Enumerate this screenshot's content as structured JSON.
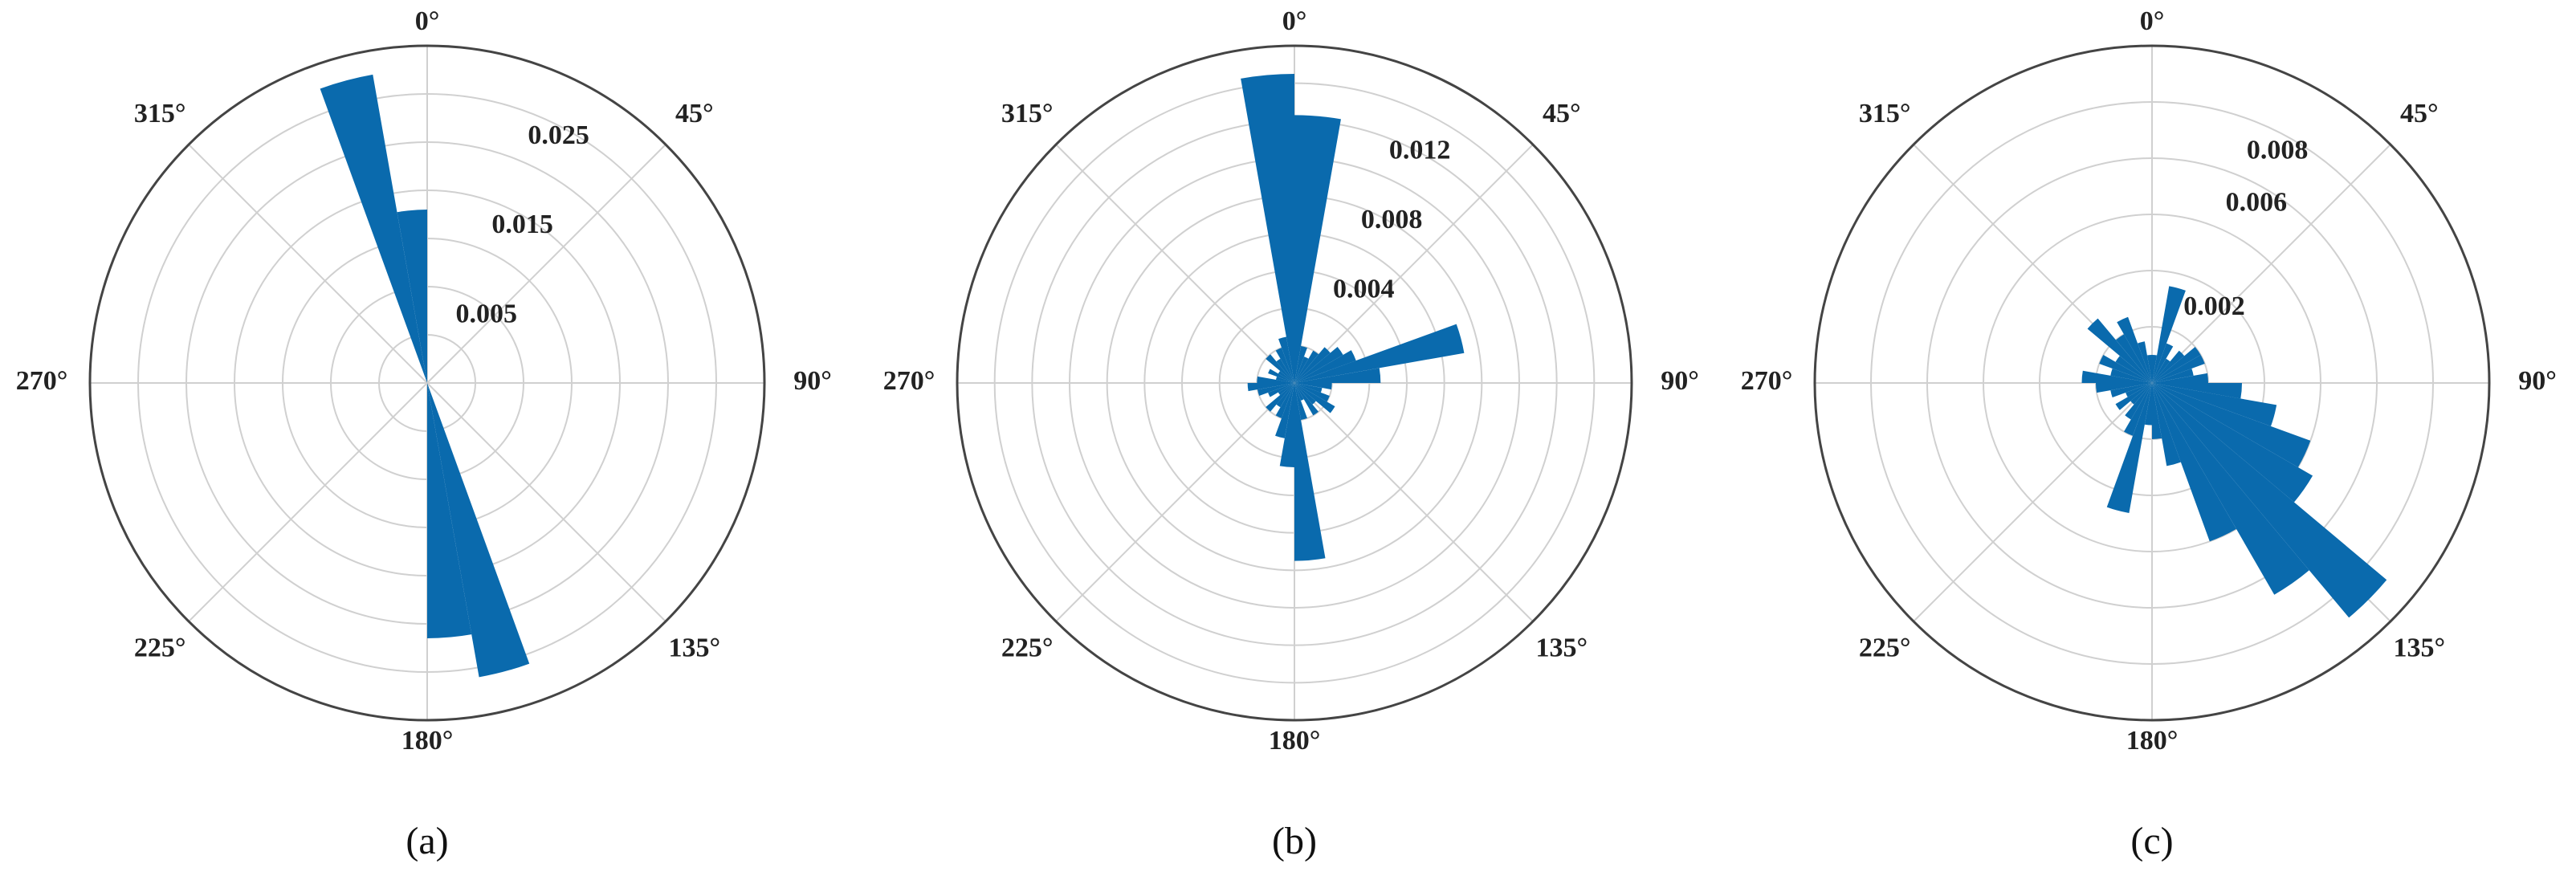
{
  "chart_data": [
    {
      "type": "polar_histogram",
      "label": "(a)",
      "color": "#0a6aad",
      "bins": [
        0,
        10,
        20,
        30,
        40,
        50,
        60,
        70,
        80,
        90,
        100,
        110,
        120,
        130,
        140,
        150,
        160,
        170,
        180,
        190,
        200,
        210,
        220,
        230,
        240,
        250,
        260,
        270,
        280,
        290,
        300,
        310,
        320,
        330,
        340,
        350,
        360
      ],
      "values": [
        0,
        0,
        0,
        0,
        0,
        0,
        0,
        0,
        0,
        0,
        0,
        0,
        0,
        0,
        0,
        0,
        0.031,
        0.0265,
        0,
        0,
        0,
        0,
        0,
        0,
        0,
        0,
        0,
        0,
        0,
        0,
        0,
        0,
        0,
        0,
        0.0325,
        0.018
      ],
      "rlim": [
        0,
        0.035
      ],
      "rticks": [
        0.005,
        0.015,
        0.025
      ],
      "rminor": [
        0.01,
        0.02,
        0.03
      ],
      "thetaticks": [
        {
          "value": 0,
          "label": "0°"
        },
        {
          "value": 45,
          "label": "45°"
        },
        {
          "value": 90,
          "label": "90°"
        },
        {
          "value": 135,
          "label": "135°"
        },
        {
          "value": 180,
          "label": "180°"
        },
        {
          "value": 225,
          "label": "225°"
        },
        {
          "value": 270,
          "label": "270°"
        },
        {
          "value": 315,
          "label": "315°"
        }
      ]
    },
    {
      "type": "polar_histogram",
      "label": "(b)",
      "color": "#0a6aad",
      "bins": [
        0,
        10,
        20,
        30,
        40,
        50,
        60,
        70,
        80,
        90,
        100,
        110,
        120,
        130,
        140,
        150,
        160,
        170,
        180,
        190,
        200,
        210,
        220,
        230,
        240,
        250,
        260,
        270,
        280,
        290,
        300,
        310,
        320,
        330,
        340,
        350,
        360
      ],
      "values": [
        0.0143,
        0.002,
        0.0015,
        0.002,
        0.0025,
        0.003,
        0.0035,
        0.0092,
        0.0046,
        0.002,
        0.0015,
        0.002,
        0.0025,
        0.0015,
        0.002,
        0.001,
        0.002,
        0.0095,
        0.0045,
        0.003,
        0.002,
        0.0015,
        0.002,
        0.001,
        0.0015,
        0.002,
        0.0025,
        0.002,
        0.001,
        0.0015,
        0.001,
        0.002,
        0.0015,
        0.002,
        0.0025,
        0.0165
      ],
      "rlim": [
        0,
        0.018
      ],
      "rticks": [
        0.004,
        0.008,
        0.012
      ],
      "rminor": [
        0.002,
        0.006,
        0.01,
        0.014,
        0.016
      ],
      "thetaticks": [
        {
          "value": 0,
          "label": "0°"
        },
        {
          "value": 45,
          "label": "45°"
        },
        {
          "value": 90,
          "label": "90°"
        },
        {
          "value": 135,
          "label": "135°"
        },
        {
          "value": 180,
          "label": "180°"
        },
        {
          "value": 225,
          "label": "225°"
        },
        {
          "value": 270,
          "label": "270°"
        },
        {
          "value": 315,
          "label": "315°"
        }
      ]
    },
    {
      "type": "polar_histogram",
      "label": "(c)",
      "color": "#0a6aad",
      "bins": [
        0,
        10,
        20,
        30,
        40,
        50,
        60,
        70,
        80,
        90,
        100,
        110,
        120,
        130,
        140,
        150,
        160,
        170,
        180,
        190,
        200,
        210,
        220,
        230,
        240,
        250,
        260,
        270,
        280,
        290,
        300,
        310,
        320,
        330,
        340,
        350,
        360
      ],
      "values": [
        0.001,
        0.0035,
        0.0015,
        0.001,
        0.0015,
        0.002,
        0.002,
        0.0015,
        0.002,
        0.0032,
        0.0045,
        0.006,
        0.0066,
        0.0109,
        0.0087,
        0.006,
        0.003,
        0.002,
        0.0015,
        0.0047,
        0.002,
        0.0015,
        0.001,
        0.0015,
        0.001,
        0.0015,
        0.002,
        0.0025,
        0.0015,
        0.002,
        0.0015,
        0.003,
        0.002,
        0.0025,
        0.0015,
        0.001
      ],
      "rlim": [
        0,
        0.012
      ],
      "rticks": [
        0.002,
        0.006,
        0.008
      ],
      "rminor": [
        0.004,
        0.01
      ],
      "thetaticks": [
        {
          "value": 0,
          "label": "0°"
        },
        {
          "value": 45,
          "label": "45°"
        },
        {
          "value": 90,
          "label": "90°"
        },
        {
          "value": 135,
          "label": "135°"
        },
        {
          "value": 180,
          "label": "180°"
        },
        {
          "value": 225,
          "label": "225°"
        },
        {
          "value": 270,
          "label": "270°"
        },
        {
          "value": 315,
          "label": "315°"
        }
      ]
    }
  ]
}
